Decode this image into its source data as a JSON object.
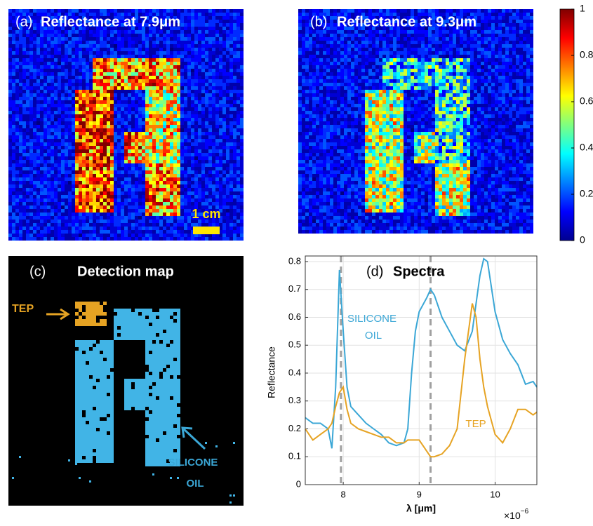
{
  "panel_a": {
    "label": "(a)",
    "title": "Reflectance at 7.9μm",
    "scale_bar": "1 cm"
  },
  "panel_b": {
    "label": "(b)",
    "title": "Reflectance at 9.3μm"
  },
  "colorbar": {
    "ticks": [
      0,
      0.2,
      0.4,
      0.6,
      0.8,
      1
    ],
    "lim": [
      0,
      1
    ]
  },
  "panel_c": {
    "label": "(c)",
    "title": "Detection map",
    "tep": "TEP",
    "silicone": [
      "SILICONE",
      "OIL"
    ]
  },
  "chart_data": {
    "type": "line",
    "label": "(d)",
    "title": "Spectra",
    "ylabel": "Reflectance",
    "xlabel": "λ [μm]",
    "exponent_label": {
      "base": "×10",
      "power": "−6"
    },
    "x": [
      7.5,
      7.6,
      7.7,
      7.8,
      7.85,
      7.9,
      7.95,
      8.0,
      8.05,
      8.1,
      8.2,
      8.3,
      8.4,
      8.5,
      8.6,
      8.7,
      8.8,
      8.85,
      8.9,
      8.95,
      9.0,
      9.1,
      9.15,
      9.2,
      9.3,
      9.4,
      9.5,
      9.6,
      9.7,
      9.75,
      9.8,
      9.85,
      9.9,
      10.0,
      10.1,
      10.2,
      10.3,
      10.4,
      10.5,
      10.55
    ],
    "series": [
      {
        "color": "#3ba7d6",
        "values": [
          0.24,
          0.22,
          0.22,
          0.2,
          0.13,
          0.35,
          0.77,
          0.55,
          0.35,
          0.28,
          0.25,
          0.22,
          0.2,
          0.18,
          0.15,
          0.14,
          0.15,
          0.2,
          0.4,
          0.55,
          0.62,
          0.67,
          0.7,
          0.68,
          0.6,
          0.55,
          0.5,
          0.48,
          0.55,
          0.65,
          0.75,
          0.81,
          0.8,
          0.62,
          0.52,
          0.47,
          0.43,
          0.36,
          0.37,
          0.35
        ]
      },
      {
        "color": "#e6a323",
        "values": [
          0.2,
          0.16,
          0.18,
          0.2,
          0.22,
          0.28,
          0.33,
          0.35,
          0.27,
          0.22,
          0.2,
          0.19,
          0.18,
          0.17,
          0.17,
          0.15,
          0.15,
          0.16,
          0.16,
          0.16,
          0.16,
          0.12,
          0.1,
          0.1,
          0.11,
          0.14,
          0.2,
          0.45,
          0.65,
          0.6,
          0.45,
          0.35,
          0.28,
          0.18,
          0.15,
          0.2,
          0.27,
          0.27,
          0.25,
          0.26
        ]
      }
    ],
    "annotations": [
      {
        "lines": [
          "SILICONE",
          "OIL"
        ],
        "color": "#3ba7d6"
      },
      {
        "lines": [
          "TEP"
        ],
        "color": "#e6a323"
      }
    ],
    "marker_lines": [
      7.97,
      9.15
    ],
    "xlim": [
      7.5,
      10.55
    ],
    "ylim": [
      0,
      0.82
    ],
    "xticks": [
      8,
      9,
      10
    ],
    "yticks": [
      0,
      0.1,
      0.2,
      0.3,
      0.4,
      0.5,
      0.6,
      0.7,
      0.8
    ],
    "grid": true
  }
}
